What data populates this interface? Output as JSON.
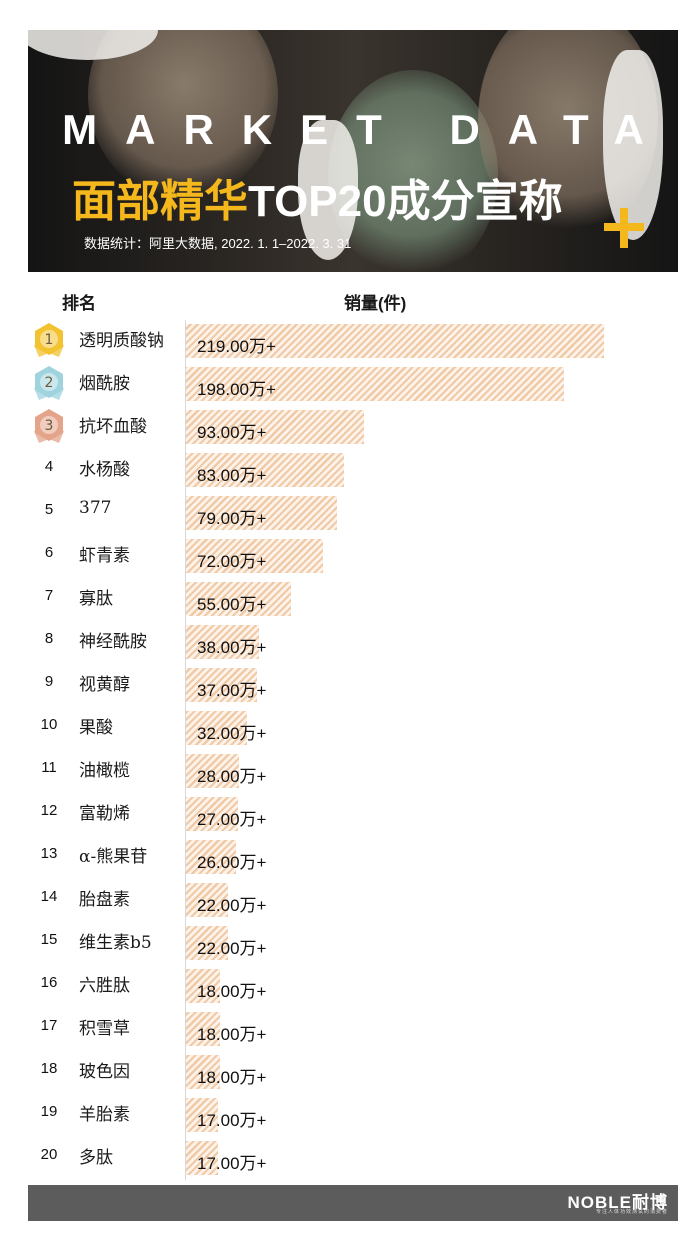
{
  "header": {
    "title": "MARKET DATA",
    "subtitle_highlight": "面部精华",
    "subtitle_rest": "TOP20成分宣称",
    "source": "数据统计：阿里大数据, 2022. 1. 1–2022. 3. 31",
    "accent_color": "#f5b81c"
  },
  "columns": {
    "rank": "排名",
    "sales": "销量(件)"
  },
  "chart_data": {
    "type": "bar",
    "orientation": "horizontal",
    "xlabel": "销量(件)",
    "ylabel": "排名",
    "categories": [
      "透明质酸钠",
      "烟酰胺",
      "抗坏血酸",
      "水杨酸",
      "377",
      "虾青素",
      "寡肽",
      "神经酰胺",
      "视黄醇",
      "果酸",
      "油橄榄",
      "富勒烯",
      "α-熊果苷",
      "胎盘素",
      "维生素b5",
      "六胜肽",
      "积雪草",
      "玻色因",
      "羊胎素",
      "多肽"
    ],
    "values": [
      219,
      198,
      93,
      83,
      79,
      72,
      55,
      38,
      37,
      32,
      28,
      27,
      26,
      22,
      22,
      18,
      18,
      18,
      17,
      17
    ],
    "value_labels": [
      "219.00万+",
      "198.00万+",
      "93.00万+",
      "83.00万+",
      "79.00万+",
      "72.00万+",
      "55.00万+",
      "38.00万+",
      "37.00万+",
      "32.00万+",
      "28.00万+",
      "27.00万+",
      "26.00万+",
      "22.00万+",
      "22.00万+",
      "18.00万+",
      "18.00万+",
      "18.00万+",
      "17.00万+",
      "17.00万+"
    ],
    "ranks": [
      "1",
      "2",
      "3",
      "4",
      "5",
      "6",
      "7",
      "8",
      "9",
      "10",
      "11",
      "12",
      "13",
      "14",
      "15",
      "16",
      "17",
      "18",
      "19",
      "20"
    ],
    "medals": [
      {
        "rank": "1",
        "color": "#f2c230",
        "icon": "gold-medal-icon"
      },
      {
        "rank": "2",
        "color": "#9fd3de",
        "icon": "silver-medal-icon"
      },
      {
        "rank": "3",
        "color": "#e4a48a",
        "icon": "bronze-medal-icon"
      }
    ],
    "bar_color": "#f0c9a6"
  },
  "footer": {
    "logo": "NOBLE耐博",
    "tagline": "专注人体功效测试的消费者"
  }
}
